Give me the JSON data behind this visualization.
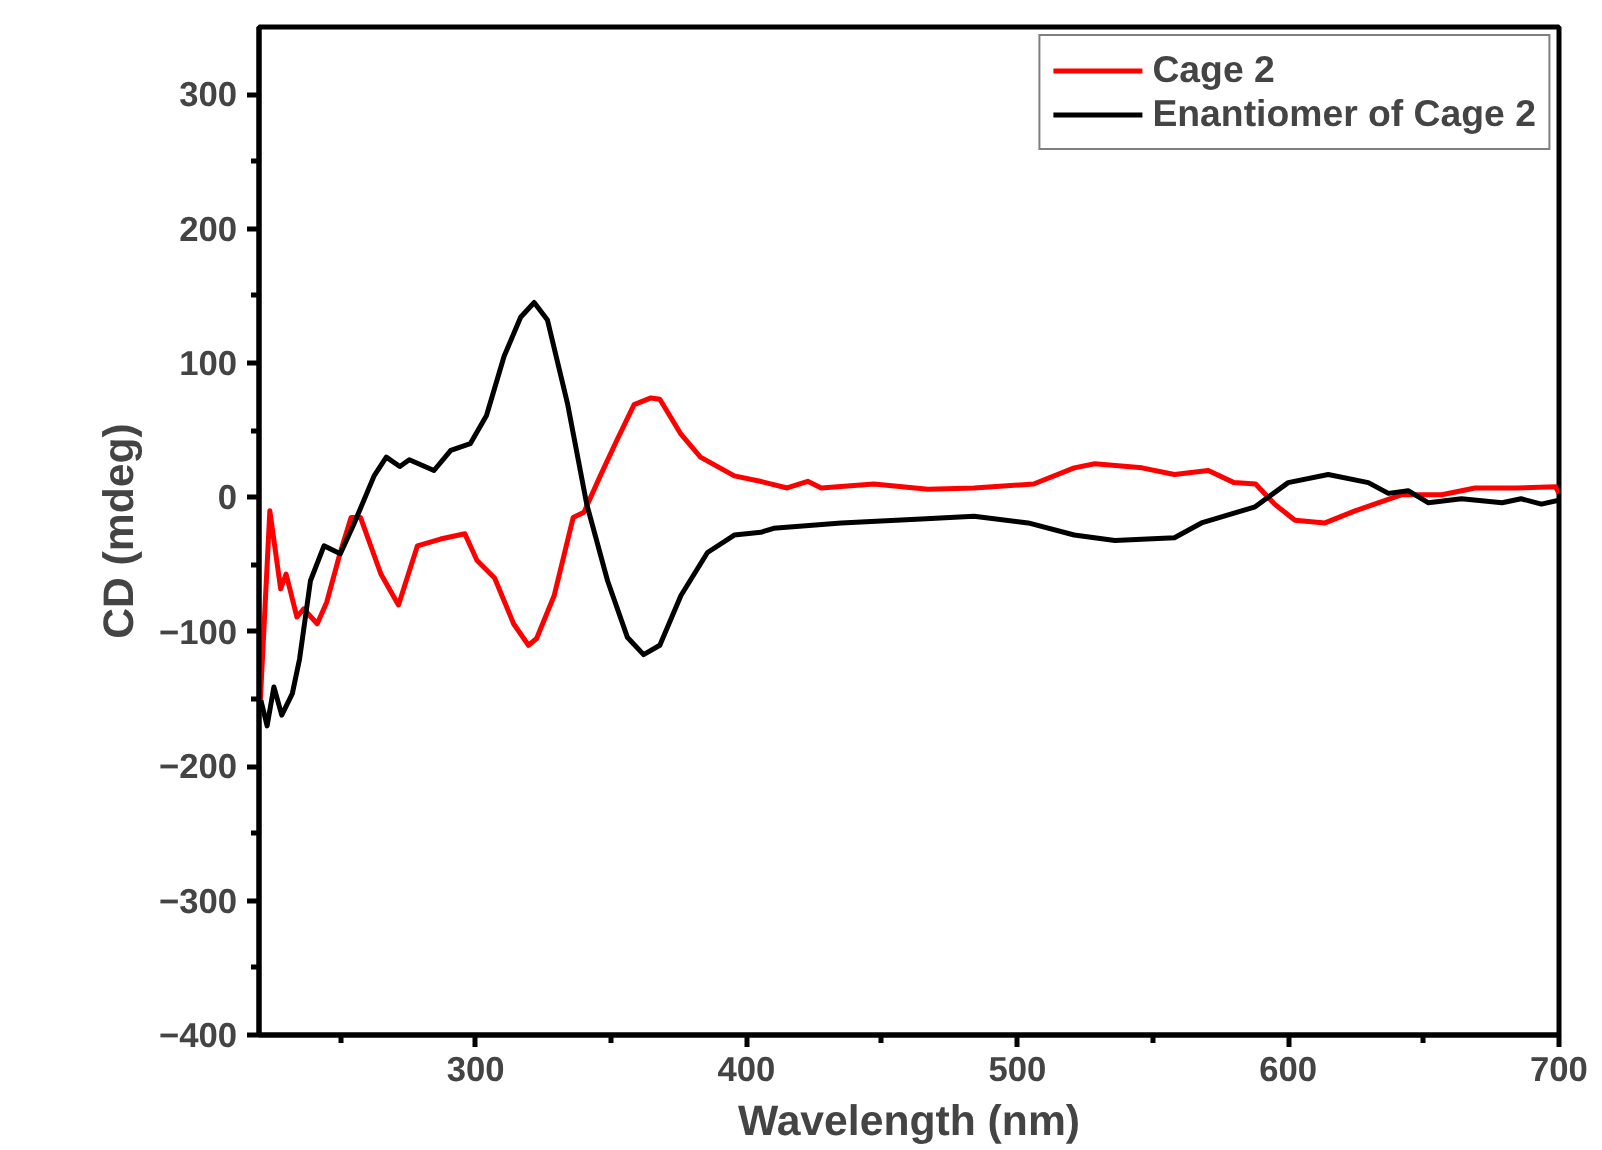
{
  "chart_data": {
    "type": "line",
    "xlabel": "Wavelength (nm)",
    "ylabel": "CD (mdeg)",
    "xlim": [
      220,
      700
    ],
    "ylim": [
      -400,
      350
    ],
    "xticks": [
      {
        "value": 250,
        "label": null
      },
      300,
      {
        "value": 350,
        "label": null
      },
      400,
      {
        "value": 450,
        "label": null
      },
      500,
      {
        "value": 550,
        "label": null
      },
      600,
      {
        "value": 650,
        "label": null
      },
      700
    ],
    "yticks": [
      -400,
      {
        "value": -350,
        "label": null
      },
      -300,
      {
        "value": -250,
        "label": null
      },
      -200,
      {
        "value": -150,
        "label": null
      },
      -100,
      {
        "value": -50,
        "label": null
      },
      0,
      {
        "value": 50,
        "label": null
      },
      100,
      {
        "value": 150,
        "label": null
      },
      200,
      {
        "value": 250,
        "label": null
      },
      300
    ],
    "legend": "top right",
    "grid": false,
    "marker": "none",
    "line_style": "solid",
    "series": [
      {
        "name": "Cage 2",
        "color": "#ff0000",
        "x": [
          220.5,
          224,
          228,
          230,
          234,
          236.5,
          241.5,
          245,
          250,
          254,
          257.5,
          265,
          271.5,
          278.5,
          287,
          296,
          300.5,
          307,
          314,
          319.5,
          322.5,
          329,
          336,
          340,
          346,
          352,
          358.5,
          364.7,
          368,
          375.8,
          383,
          395.5,
          405,
          415,
          422.6,
          427.6,
          447,
          467,
          484,
          506,
          521,
          528.6,
          546,
          558,
          570.5,
          580,
          588,
          595,
          602.5,
          613.6,
          624.7,
          642,
          656.7,
          669,
          684,
          698.7,
          700
        ],
        "values": [
          -151,
          -10,
          -68,
          -57,
          -89,
          -83,
          -94,
          -78,
          -41,
          -15,
          -15,
          -57,
          -80,
          -36,
          -31,
          -27,
          -47,
          -60,
          -94,
          -110,
          -105,
          -73,
          -15,
          -11,
          16,
          42,
          69,
          74,
          73,
          47,
          30,
          16,
          12,
          7,
          12,
          7,
          10,
          6,
          7,
          10,
          22,
          25,
          22,
          17,
          20,
          11,
          10,
          -5,
          -17,
          -19,
          -10,
          2,
          2,
          7,
          7,
          8,
          3
        ]
      },
      {
        "name": "Enantiomer of Cage 2",
        "color": "#000000",
        "x": [
          220.7,
          223,
          225.5,
          228.4,
          232.3,
          235,
          239,
          244,
          250,
          255,
          262.5,
          267,
          272,
          275.5,
          284.6,
          290.8,
          298,
          304,
          310.5,
          316.6,
          321.6,
          326.5,
          334,
          341,
          348.7,
          356,
          362,
          368,
          375.8,
          385.6,
          395.5,
          405.3,
          410,
          435,
          464.5,
          484,
          504,
          521,
          536,
          558,
          568,
          587.8,
          600,
          614.8,
          629.6,
          637,
          644.3,
          651.8,
          664,
          679,
          686,
          693.5,
          700
        ],
        "values": [
          -151,
          -170,
          -141,
          -162,
          -146,
          -120,
          -62,
          -36,
          -42,
          -20,
          16,
          30,
          23,
          28,
          20,
          35,
          40,
          61,
          105,
          134,
          145,
          132,
          69,
          -5,
          -62,
          -104,
          -117,
          -110,
          -73,
          -41,
          -28,
          -26,
          -23,
          -19,
          -16,
          -14,
          -19,
          -28,
          -32,
          -30,
          -19,
          -7,
          11,
          17,
          11,
          3,
          5,
          -4,
          -1,
          -4,
          -1,
          -5,
          -2
        ]
      }
    ]
  }
}
